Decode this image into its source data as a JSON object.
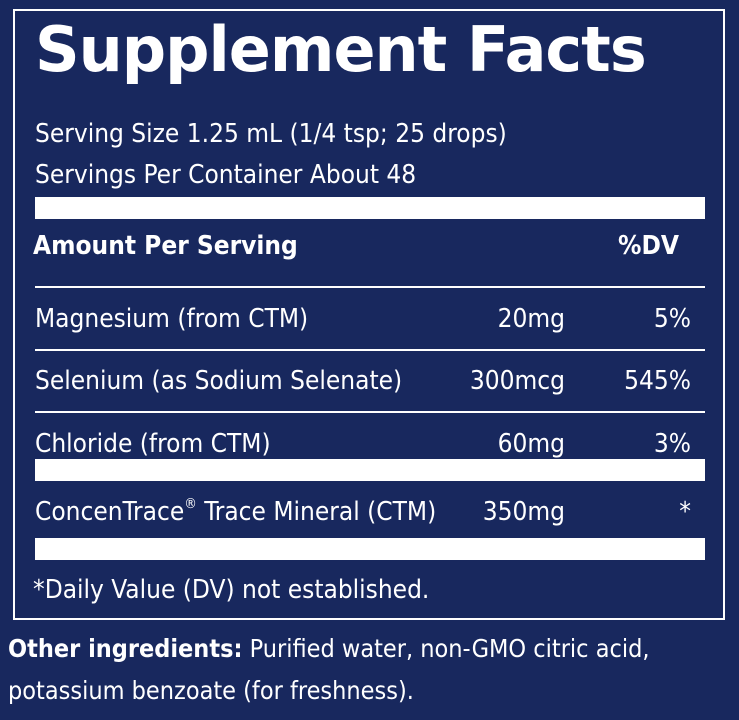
{
  "title": "Supplement Facts",
  "serving_size": "Serving Size 1.25 mL (1/4 tsp; 25 drops)",
  "servings_per_container": "Servings Per Container About 48",
  "header": {
    "amount": "Amount Per Serving",
    "dv": "%DV"
  },
  "rows": [
    {
      "name": "Magnesium (from CTM)",
      "amount": "20mg",
      "dv": "5%"
    },
    {
      "name": "Selenium (as Sodium Selenate)",
      "amount": "300mcg",
      "dv": "545%"
    },
    {
      "name": "Chloride (from CTM)",
      "amount": "60mg",
      "dv": "3%"
    },
    {
      "name_part1": "ConcenTrace",
      "name_mark": "®",
      "name_part2": " Trace Mineral (CTM)",
      "amount": "350mg",
      "dv": "*"
    }
  ],
  "footnote": "*Daily Value (DV) not established.",
  "other_ingredients": {
    "label": "Other ingredients:",
    "text": " Purified water, non-GMO citric acid, potassium benzoate (for freshness)."
  },
  "colors": {
    "background": "#18285e",
    "text": "#ffffff"
  }
}
